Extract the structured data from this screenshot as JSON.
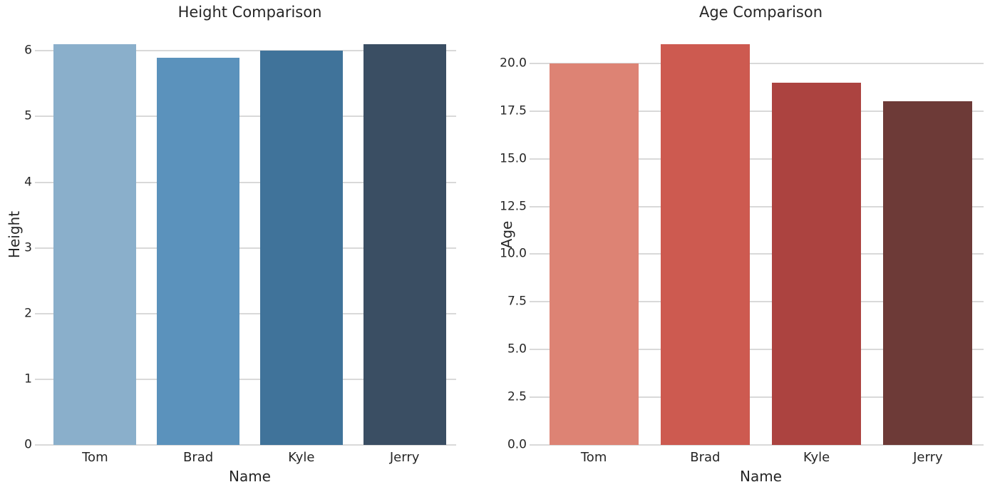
{
  "figure": {
    "background": "#ffffff",
    "text_color": "#262626",
    "grid_color": "#d9d9d9"
  },
  "chart_data": [
    {
      "type": "bar",
      "title": "Height Comparison",
      "xlabel": "Name",
      "ylabel": "Height",
      "categories": [
        "Tom",
        "Brad",
        "Kyle",
        "Jerry"
      ],
      "values": [
        6.1,
        5.9,
        6.0,
        6.1
      ],
      "bar_colors": [
        "#8aafcb",
        "#5b92bc",
        "#40739a",
        "#3a4e63"
      ],
      "ylim": [
        0,
        6.405
      ],
      "yticks": [
        0,
        1,
        2,
        3,
        4,
        5,
        6
      ],
      "ytick_labels": [
        "0",
        "1",
        "2",
        "3",
        "4",
        "5",
        "6"
      ],
      "grid": true,
      "legend": null,
      "bar_width_fraction": 0.8
    },
    {
      "type": "bar",
      "title": "Age Comparison",
      "xlabel": "Name",
      "ylabel": "Age",
      "categories": [
        "Tom",
        "Brad",
        "Kyle",
        "Jerry"
      ],
      "values": [
        20,
        21,
        19,
        18
      ],
      "bar_colors": [
        "#dd8374",
        "#cd5a50",
        "#ac4340",
        "#6d3a37"
      ],
      "ylim": [
        0,
        22.05
      ],
      "yticks": [
        0,
        2.5,
        5,
        7.5,
        10,
        12.5,
        15,
        17.5,
        20
      ],
      "ytick_labels": [
        "0.0",
        "2.5",
        "5.0",
        "7.5",
        "10.0",
        "12.5",
        "15.0",
        "17.5",
        "20.0"
      ],
      "grid": true,
      "legend": null,
      "bar_width_fraction": 0.8
    }
  ]
}
